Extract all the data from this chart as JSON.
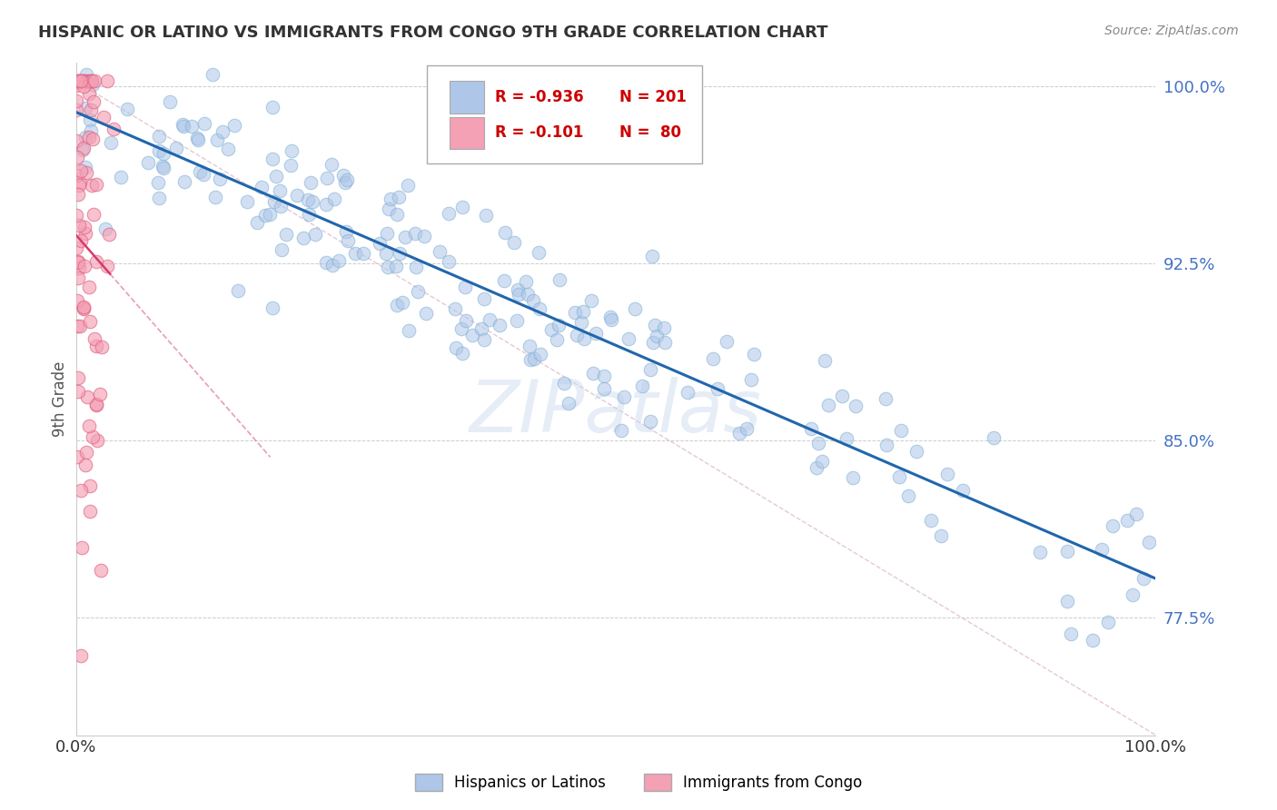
{
  "title": "HISPANIC OR LATINO VS IMMIGRANTS FROM CONGO 9TH GRADE CORRELATION CHART",
  "source": "Source: ZipAtlas.com",
  "ylabel": "9th Grade",
  "watermark": "ZIPatlas",
  "legend_entries": [
    {
      "label": "Hispanics or Latinos",
      "color": "#aec6e8"
    },
    {
      "label": "Immigrants from Congo",
      "color": "#f4a0b5"
    }
  ],
  "r_blue": "-0.936",
  "n_blue": "201",
  "r_pink": "-0.101",
  "n_pink": "80",
  "blue_scatter_color": "#aec6e8",
  "blue_edge_color": "#7bafd4",
  "pink_scatter_color": "#f4a0b5",
  "pink_edge_color": "#e06080",
  "blue_line_color": "#2166ac",
  "pink_line_color": "#d63a6a",
  "diag_color": "#ddbbcc",
  "xmin": 0.0,
  "xmax": 1.0,
  "ymin": 0.725,
  "ymax": 1.01,
  "yticks": [
    0.775,
    0.85,
    0.925,
    1.0
  ],
  "ytick_labels": [
    "77.5%",
    "85.0%",
    "92.5%",
    "100.0%"
  ],
  "xtick_labels": [
    "0.0%",
    "100.0%"
  ],
  "background_color": "#ffffff",
  "grid_color": "#cccccc",
  "r_n_color": "#cc0000",
  "title_color": "#333333",
  "source_color": "#888888",
  "ytick_color": "#4472c4",
  "xtick_color": "#333333"
}
